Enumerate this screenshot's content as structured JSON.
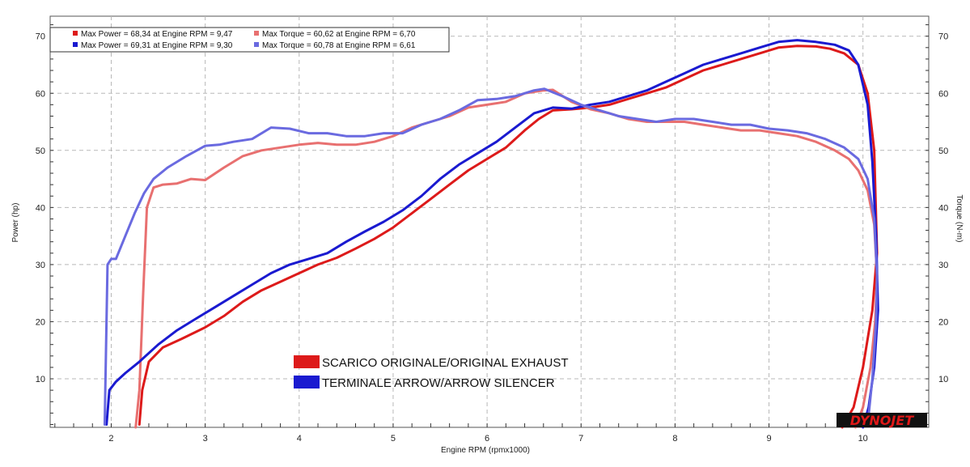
{
  "chart_data": {
    "type": "line",
    "xlabel": "Engine RPM (rpmx1000)",
    "ylabel_left": "Power (hp)",
    "ylabel_right": "Torque (N-m)",
    "xlim": [
      1.35,
      10.7
    ],
    "ylim": [
      1.5,
      73.5
    ],
    "x_ticks": [
      "2",
      "3",
      "4",
      "5",
      "6",
      "7",
      "8",
      "9",
      "10"
    ],
    "y_ticks_left": [
      "10",
      "20",
      "30",
      "40",
      "50",
      "60",
      "70"
    ],
    "y_ticks_right": [
      "10",
      "20",
      "30",
      "40",
      "50",
      "60",
      "70"
    ],
    "grid": true,
    "stats_legend": [
      {
        "color": "#dd1a1a",
        "text": "Max Power = 68,34 at Engine RPM = 9,47"
      },
      {
        "color": "#e87070",
        "text": "Max Torque = 60,62 at Engine RPM = 6,70"
      },
      {
        "color": "#1a1ad0",
        "text": "Max Power = 69,31 at Engine RPM = 9,30"
      },
      {
        "color": "#6a6ae0",
        "text": "Max Torque = 60,78 at Engine RPM = 6,61"
      }
    ],
    "legend": [
      {
        "color": "#dd1a1a",
        "label": "SCARICO ORIGINALE/ORIGINAL EXHAUST"
      },
      {
        "color": "#1a1ad0",
        "label": "TERMINALE ARROW/ARROW SILENCER"
      }
    ],
    "logo": "DYNOJET",
    "series": [
      {
        "color": "#dd1a1a",
        "x": [
          2.3,
          2.33,
          2.4,
          2.55,
          2.75,
          3.0,
          3.2,
          3.4,
          3.6,
          3.8,
          4.0,
          4.2,
          4.4,
          4.6,
          4.8,
          5.0,
          5.2,
          5.4,
          5.6,
          5.8,
          6.0,
          6.2,
          6.4,
          6.55,
          6.7,
          6.9,
          7.1,
          7.3,
          7.5,
          7.7,
          7.9,
          8.1,
          8.3,
          8.5,
          8.7,
          8.9,
          9.1,
          9.3,
          9.5,
          9.65,
          9.8,
          9.95,
          10.05,
          10.12,
          10.15,
          10.1,
          10.0,
          9.9,
          9.78
        ],
        "y": [
          2,
          8,
          13,
          15.5,
          17,
          19,
          21,
          23.5,
          25.5,
          27,
          28.5,
          30,
          31.2,
          32.8,
          34.5,
          36.5,
          39,
          41.5,
          44,
          46.5,
          48.5,
          50.5,
          53.5,
          55.5,
          57,
          57.2,
          57.5,
          58,
          59,
          60,
          61,
          62.5,
          64,
          65,
          66,
          67,
          68,
          68.3,
          68.2,
          67.8,
          67,
          65,
          60,
          50,
          32,
          22,
          12,
          5,
          1.5
        ]
      },
      {
        "color": "#e87070",
        "x": [
          2.26,
          2.3,
          2.34,
          2.38,
          2.45,
          2.55,
          2.7,
          2.85,
          3.0,
          3.2,
          3.4,
          3.6,
          3.8,
          4.0,
          4.2,
          4.4,
          4.6,
          4.8,
          5.0,
          5.2,
          5.4,
          5.6,
          5.8,
          6.0,
          6.2,
          6.4,
          6.6,
          6.7,
          6.9,
          7.1,
          7.3,
          7.5,
          7.7,
          7.9,
          8.1,
          8.3,
          8.5,
          8.7,
          8.9,
          9.1,
          9.3,
          9.5,
          9.7,
          9.85,
          9.95,
          10.05,
          10.12,
          10.15,
          10.13,
          10.08,
          10.0,
          9.92
        ],
        "y": [
          1.5,
          8,
          25,
          40,
          43.5,
          44,
          44.2,
          45,
          44.8,
          47,
          49,
          50,
          50.5,
          51,
          51.3,
          51,
          51,
          51.5,
          52.5,
          54,
          55,
          56,
          57.5,
          58,
          58.5,
          60,
          60.5,
          60.6,
          58.5,
          57.2,
          56.5,
          55.5,
          55,
          55,
          55,
          54.5,
          54,
          53.5,
          53.5,
          53,
          52.5,
          51.5,
          50,
          48.5,
          46.5,
          43,
          37,
          28,
          20,
          12,
          5,
          1.5
        ]
      },
      {
        "color": "#1a1ad0",
        "x": [
          1.95,
          1.98,
          2.05,
          2.15,
          2.3,
          2.5,
          2.7,
          2.9,
          3.1,
          3.3,
          3.5,
          3.7,
          3.9,
          4.1,
          4.3,
          4.5,
          4.7,
          4.9,
          5.1,
          5.3,
          5.5,
          5.7,
          5.9,
          6.1,
          6.3,
          6.5,
          6.7,
          6.9,
          7.1,
          7.3,
          7.5,
          7.7,
          7.9,
          8.1,
          8.3,
          8.5,
          8.7,
          8.9,
          9.1,
          9.3,
          9.5,
          9.7,
          9.85,
          9.95,
          10.05,
          10.1,
          10.14,
          10.16,
          10.12,
          10.06,
          10.0
        ],
        "y": [
          2,
          8,
          9.5,
          11,
          13,
          16,
          18.5,
          20.5,
          22.5,
          24.5,
          26.5,
          28.5,
          30,
          31,
          32,
          34,
          35.8,
          37.5,
          39.5,
          42,
          45,
          47.5,
          49.5,
          51.5,
          54,
          56.5,
          57.5,
          57.3,
          58,
          58.5,
          59.5,
          60.5,
          62,
          63.5,
          65,
          66,
          67,
          68,
          69,
          69.3,
          69,
          68.5,
          67.5,
          65,
          58,
          48,
          35,
          22,
          12,
          5,
          1.5
        ]
      },
      {
        "color": "#6a6ae0",
        "x": [
          1.93,
          1.96,
          2.0,
          2.05,
          2.15,
          2.25,
          2.35,
          2.45,
          2.6,
          2.8,
          3.0,
          3.15,
          3.3,
          3.5,
          3.7,
          3.9,
          4.1,
          4.3,
          4.5,
          4.7,
          4.9,
          5.1,
          5.3,
          5.5,
          5.7,
          5.9,
          6.1,
          6.3,
          6.5,
          6.61,
          6.8,
          7.0,
          7.2,
          7.4,
          7.6,
          7.8,
          8.0,
          8.2,
          8.4,
          8.6,
          8.8,
          9.0,
          9.2,
          9.4,
          9.6,
          9.8,
          9.95,
          10.05,
          10.12,
          10.15,
          10.14,
          10.1,
          10.05
        ],
        "y": [
          2,
          30,
          31,
          31,
          35,
          39,
          42.5,
          45,
          47,
          49,
          50.8,
          51,
          51.5,
          52,
          54,
          53.8,
          53,
          53,
          52.5,
          52.5,
          53,
          53,
          54.5,
          55.5,
          57,
          58.8,
          59,
          59.5,
          60.5,
          60.78,
          59.5,
          58,
          57,
          56,
          55.5,
          55,
          55.5,
          55.5,
          55,
          54.5,
          54.5,
          53.8,
          53.5,
          53,
          52,
          50.5,
          48.5,
          45,
          38,
          28,
          20,
          10,
          2
        ]
      }
    ]
  }
}
